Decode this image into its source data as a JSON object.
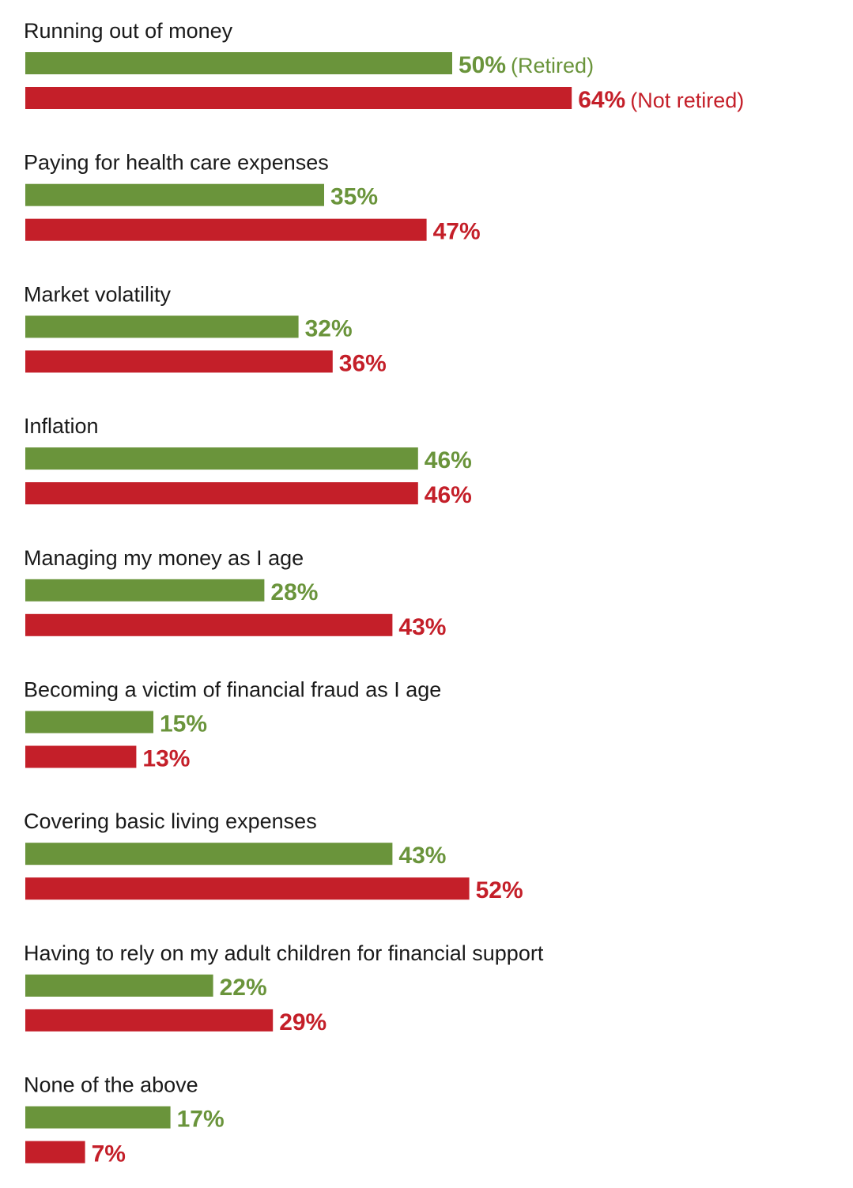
{
  "colors": {
    "retired": "#6a943b",
    "not_retired": "#c41f29",
    "text": "#1a1a1a"
  },
  "chart_data": {
    "type": "bar",
    "orientation": "horizontal",
    "title": "",
    "xlabel": "",
    "ylabel": "",
    "xlim": [
      0,
      100
    ],
    "grid": false,
    "categories": [
      "Running out of money",
      "Paying for health care expenses",
      "Market volatility",
      "Inflation",
      "Managing my money as I age",
      "Becoming a victim of financial fraud as I age",
      "Covering basic living expenses",
      "Having to rely on my adult children for financial support",
      "None of the above"
    ],
    "series": [
      {
        "name": "Retired",
        "legend_label": "(Retired)",
        "values": [
          50,
          35,
          32,
          46,
          28,
          15,
          43,
          22,
          17
        ],
        "labels": [
          "50%",
          "35%",
          "32%",
          "46%",
          "28%",
          "15%",
          "43%",
          "22%",
          "17%"
        ]
      },
      {
        "name": "Not retired",
        "legend_label": "(Not retired)",
        "values": [
          64,
          47,
          36,
          46,
          43,
          13,
          52,
          29,
          7
        ],
        "labels": [
          "64%",
          "47%",
          "36%",
          "46%",
          "43%",
          "13%",
          "52%",
          "29%",
          "7%"
        ]
      }
    ]
  }
}
